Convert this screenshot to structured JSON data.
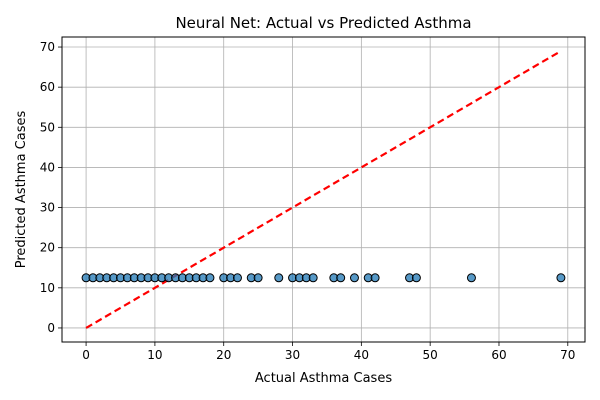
{
  "chart_data": {
    "type": "scatter",
    "title": "Neural Net: Actual vs Predicted Asthma",
    "xlabel": "Actual Asthma Cases",
    "ylabel": "Predicted Asthma Cases",
    "xlim": [
      -3.5,
      72.5
    ],
    "ylim": [
      -3.5,
      72.5
    ],
    "xticks": [
      0,
      10,
      20,
      30,
      40,
      50,
      60,
      70
    ],
    "yticks": [
      0,
      10,
      20,
      30,
      40,
      50,
      60,
      70
    ],
    "grid": true,
    "point_color": "#1f77b4",
    "point_edge_color": "#000000",
    "reference_line": {
      "x": [
        0,
        69
      ],
      "y": [
        0,
        69
      ],
      "color": "#ff0000",
      "style": "dashed"
    },
    "points": {
      "x": [
        0,
        1,
        2,
        3,
        4,
        5,
        6,
        7,
        8,
        9,
        10,
        11,
        12,
        13,
        14,
        15,
        16,
        17,
        18,
        20,
        21,
        22,
        24,
        25,
        28,
        30,
        31,
        32,
        33,
        36,
        37,
        39,
        41,
        42,
        47,
        48,
        56,
        69
      ],
      "y": [
        12.5,
        12.5,
        12.5,
        12.5,
        12.5,
        12.5,
        12.5,
        12.5,
        12.5,
        12.5,
        12.5,
        12.5,
        12.5,
        12.5,
        12.5,
        12.5,
        12.5,
        12.5,
        12.5,
        12.5,
        12.5,
        12.5,
        12.5,
        12.5,
        12.5,
        12.5,
        12.5,
        12.5,
        12.5,
        12.5,
        12.5,
        12.5,
        12.5,
        12.5,
        12.5,
        12.5,
        12.5,
        12.5
      ]
    }
  }
}
